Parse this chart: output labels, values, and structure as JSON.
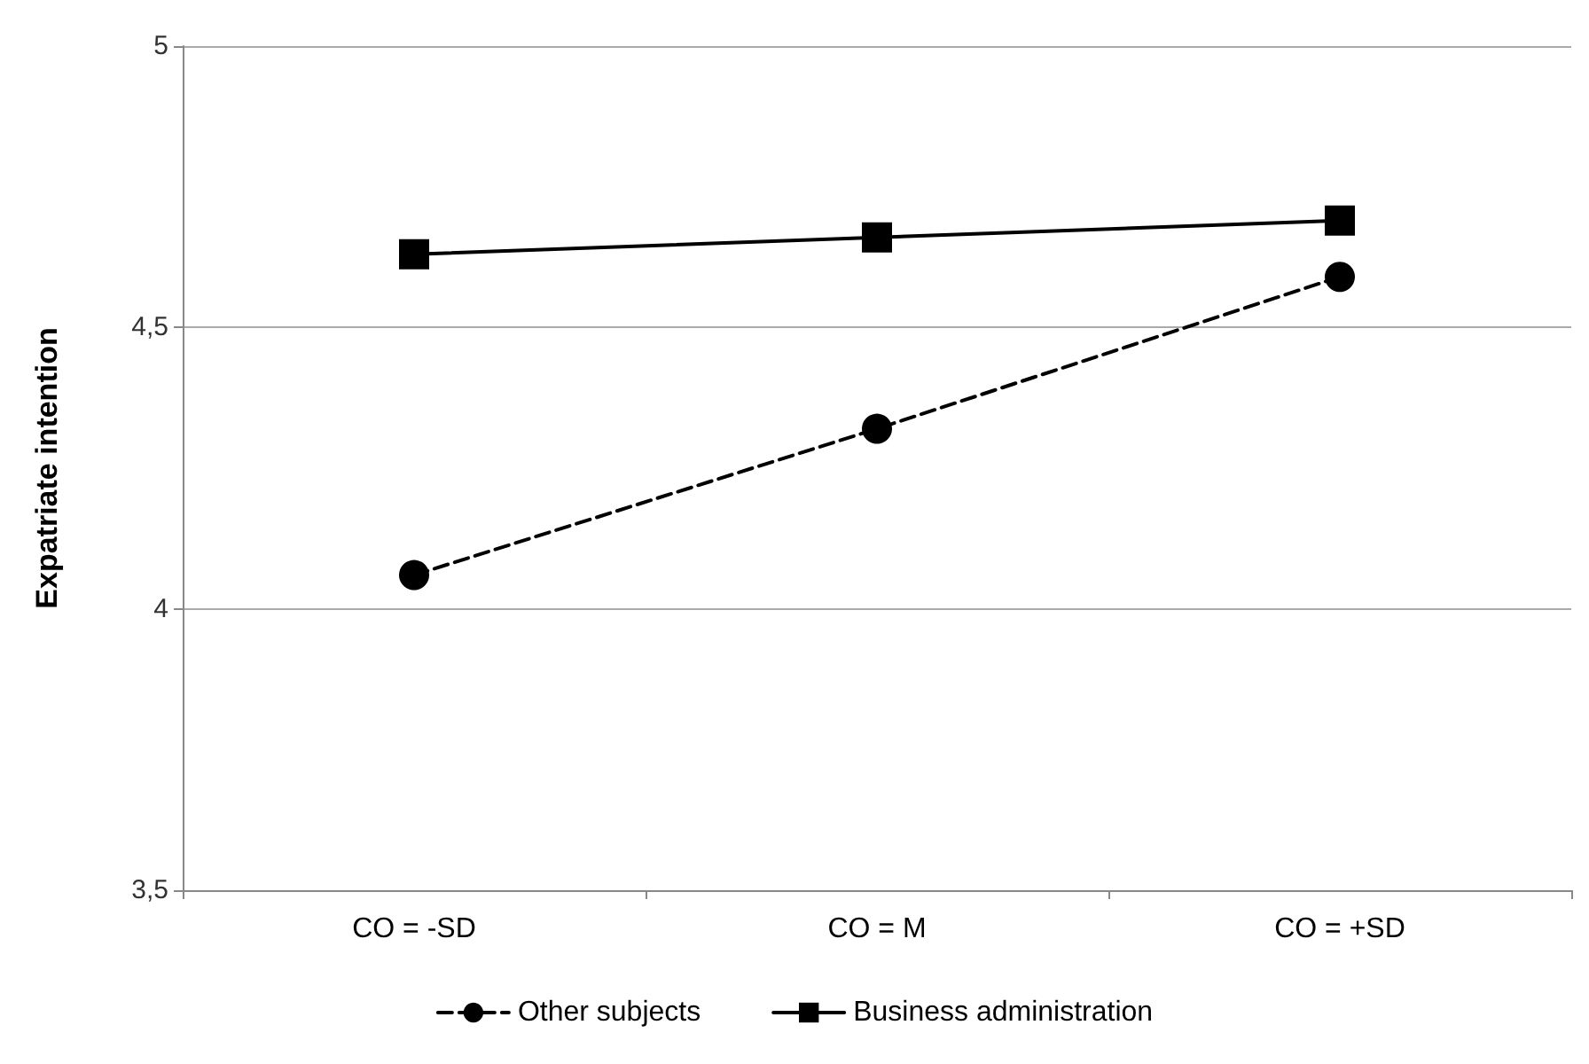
{
  "chart_data": {
    "type": "line",
    "ylabel": "Expatriate intention",
    "categories": [
      "CO = -SD",
      "CO = M",
      "CO = +SD"
    ],
    "series": [
      {
        "name": "Other subjects",
        "color": "#000000",
        "values": [
          4.06,
          4.32,
          4.59
        ],
        "marker": "circle",
        "line_style": "dashed"
      },
      {
        "name": "Business administration",
        "color": "#000000",
        "values": [
          4.63,
          4.66,
          4.69
        ],
        "marker": "square",
        "line_style": "solid"
      }
    ],
    "ylim": [
      3.5,
      5
    ],
    "yticks": [
      {
        "value": 3.5,
        "label": "3,5"
      },
      4,
      {
        "value": 4.5,
        "label": "4,5"
      },
      5
    ],
    "grid": "y",
    "legend": "bottom"
  }
}
